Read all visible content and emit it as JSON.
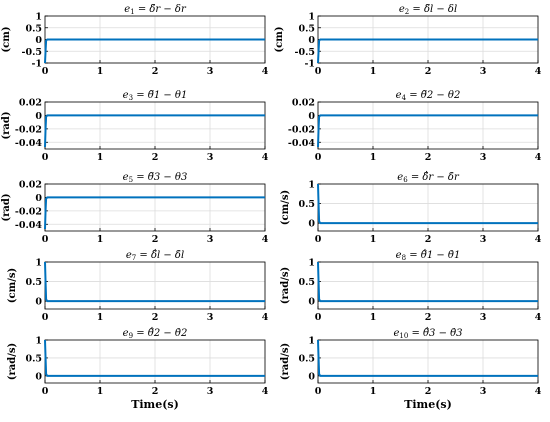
{
  "figure": {
    "xlabel": "Time(s)",
    "line_color": "#0072BD",
    "grid_color": "#dcdcdc"
  },
  "chart_data": [
    {
      "type": "line",
      "title": "e1 = δ̃r − δr",
      "title_parts": {
        "var": "e",
        "sub": "1",
        "rhs": "= δ̃r − δr"
      },
      "ylabel": "(cm)",
      "xlim": [
        0,
        4
      ],
      "ylim": [
        -1,
        1
      ],
      "xticks": [
        0,
        1,
        2,
        3,
        4
      ],
      "yticks": [
        -1,
        -0.5,
        0,
        0.5,
        1
      ],
      "ytick_labels": [
        "-1",
        "-0.5",
        "0",
        "0.5",
        "1"
      ],
      "grid": true,
      "series": [
        {
          "x": [
            0,
            0.01,
            0.02,
            0.04,
            4
          ],
          "y": [
            -1,
            -0.5,
            -0.05,
            0,
            0
          ]
        }
      ]
    },
    {
      "type": "line",
      "title": "e2 = δ̃l − δl",
      "title_parts": {
        "var": "e",
        "sub": "2",
        "rhs": "= δ̃l − δl"
      },
      "ylabel": "(cm)",
      "xlim": [
        0,
        4
      ],
      "ylim": [
        -1,
        1
      ],
      "xticks": [
        0,
        1,
        2,
        3,
        4
      ],
      "yticks": [
        -1,
        -0.5,
        0,
        0.5,
        1
      ],
      "ytick_labels": [
        "-1",
        "-0.5",
        "0",
        "0.5",
        "1"
      ],
      "grid": true,
      "series": [
        {
          "x": [
            0,
            0.01,
            0.02,
            0.04,
            4
          ],
          "y": [
            -1,
            -0.5,
            -0.05,
            0,
            0
          ]
        }
      ]
    },
    {
      "type": "line",
      "title": "e3 = θ̃1 − θ1",
      "title_parts": {
        "var": "e",
        "sub": "3",
        "rhs": "= θ̃1 − θ1"
      },
      "ylabel": "(rad)",
      "xlim": [
        0,
        4
      ],
      "ylim": [
        -0.05,
        0.02
      ],
      "xticks": [
        0,
        1,
        2,
        3,
        4
      ],
      "yticks": [
        -0.04,
        -0.02,
        0,
        0.02
      ],
      "ytick_labels": [
        "-0.04",
        "-0.02",
        "0",
        "0.02"
      ],
      "grid": true,
      "series": [
        {
          "x": [
            0,
            0.01,
            0.02,
            0.04,
            4
          ],
          "y": [
            -0.047,
            -0.02,
            -0.002,
            0,
            0
          ]
        }
      ]
    },
    {
      "type": "line",
      "title": "e4 = θ̃2 − θ2",
      "title_parts": {
        "var": "e",
        "sub": "4",
        "rhs": "= θ̃2 − θ2"
      },
      "ylabel": "",
      "xlim": [
        0,
        4
      ],
      "ylim": [
        -0.05,
        0.02
      ],
      "xticks": [
        0,
        1,
        2,
        3,
        4
      ],
      "yticks": [
        -0.04,
        -0.02,
        0,
        0.02
      ],
      "ytick_labels": [
        "-0.04",
        "-0.02",
        "0",
        "0.02"
      ],
      "grid": true,
      "series": [
        {
          "x": [
            0,
            0.01,
            0.02,
            0.04,
            4
          ],
          "y": [
            -0.047,
            -0.02,
            -0.002,
            0,
            0
          ]
        }
      ]
    },
    {
      "type": "line",
      "title": "e5 = θ̃3 − θ3",
      "title_parts": {
        "var": "e",
        "sub": "5",
        "rhs": "= θ̃3 − θ3"
      },
      "ylabel": "(rad)",
      "xlim": [
        0,
        4
      ],
      "ylim": [
        -0.05,
        0.02
      ],
      "xticks": [
        0,
        1,
        2,
        3,
        4
      ],
      "yticks": [
        -0.04,
        -0.02,
        0,
        0.02
      ],
      "ytick_labels": [
        "-0.04",
        "-0.02",
        "0",
        "0.02"
      ],
      "grid": true,
      "series": [
        {
          "x": [
            0,
            0.01,
            0.02,
            0.04,
            4
          ],
          "y": [
            -0.047,
            -0.02,
            -0.002,
            0,
            0
          ]
        }
      ]
    },
    {
      "type": "line",
      "title": "e6 = δ̃̇r − δ̇r",
      "title_parts": {
        "var": "e",
        "sub": "6",
        "rhs": "= δ̃̇r − δ̇r"
      },
      "ylabel": "(cm/s)",
      "xlim": [
        0,
        4
      ],
      "ylim": [
        -0.2,
        1
      ],
      "xticks": [
        0,
        1,
        2,
        3,
        4
      ],
      "yticks": [
        0,
        0.5,
        1
      ],
      "ytick_labels": [
        "0",
        "0.5",
        "1"
      ],
      "grid": true,
      "series": [
        {
          "x": [
            0,
            0.01,
            0.02,
            0.04,
            4
          ],
          "y": [
            1,
            0.5,
            0.05,
            0,
            0
          ]
        }
      ]
    },
    {
      "type": "line",
      "title": "e7 = δ̃̇l − δ̇l",
      "title_parts": {
        "var": "e",
        "sub": "7",
        "rhs": "= δ̃̇l − δ̇l"
      },
      "ylabel": "(cm/s)",
      "xlim": [
        0,
        4
      ],
      "ylim": [
        -0.2,
        1
      ],
      "xticks": [
        0,
        1,
        2,
        3,
        4
      ],
      "yticks": [
        0,
        0.5,
        1
      ],
      "ytick_labels": [
        "0",
        "0.5",
        "1"
      ],
      "grid": true,
      "series": [
        {
          "x": [
            0,
            0.01,
            0.02,
            0.04,
            4
          ],
          "y": [
            1,
            0.5,
            0.05,
            0,
            0
          ]
        }
      ]
    },
    {
      "type": "line",
      "title": "e8 = θ̃̇1 − θ̇1",
      "title_parts": {
        "var": "e",
        "sub": "8",
        "rhs": "= θ̃̇1 − θ̇1"
      },
      "ylabel": "(rad/s)",
      "xlim": [
        0,
        4
      ],
      "ylim": [
        -0.2,
        1
      ],
      "xticks": [
        0,
        1,
        2,
        3,
        4
      ],
      "yticks": [
        0,
        0.5,
        1
      ],
      "ytick_labels": [
        "0",
        "0.5",
        "1"
      ],
      "grid": true,
      "series": [
        {
          "x": [
            0,
            0.01,
            0.02,
            0.04,
            4
          ],
          "y": [
            1,
            0.5,
            0.05,
            0,
            0
          ]
        }
      ]
    },
    {
      "type": "line",
      "title": "e9 = θ̃̇2 − θ̇2",
      "title_parts": {
        "var": "e",
        "sub": "9",
        "rhs": "= θ̃̇2 − θ̇2"
      },
      "ylabel": "(rad/s)",
      "xlim": [
        0,
        4
      ],
      "ylim": [
        -0.2,
        1
      ],
      "xticks": [
        0,
        1,
        2,
        3,
        4
      ],
      "yticks": [
        0,
        0.5,
        1
      ],
      "ytick_labels": [
        "0",
        "0.5",
        "1"
      ],
      "grid": true,
      "series": [
        {
          "x": [
            0,
            0.01,
            0.02,
            0.04,
            4
          ],
          "y": [
            1,
            0.5,
            0.05,
            0,
            0
          ]
        }
      ]
    },
    {
      "type": "line",
      "title": "e10 = θ̃̇3 − θ̇3",
      "title_parts": {
        "var": "e",
        "sub": "10",
        "rhs": "= θ̃̇3 − θ̇3"
      },
      "ylabel": "(rad/s)",
      "xlim": [
        0,
        4
      ],
      "ylim": [
        -0.2,
        1
      ],
      "xticks": [
        0,
        1,
        2,
        3,
        4
      ],
      "yticks": [
        0,
        0.5,
        1
      ],
      "ytick_labels": [
        "0",
        "0.5",
        "1"
      ],
      "grid": true,
      "series": [
        {
          "x": [
            0,
            0.01,
            0.02,
            0.04,
            4
          ],
          "y": [
            1,
            0.5,
            0.05,
            0,
            0
          ]
        }
      ]
    }
  ]
}
